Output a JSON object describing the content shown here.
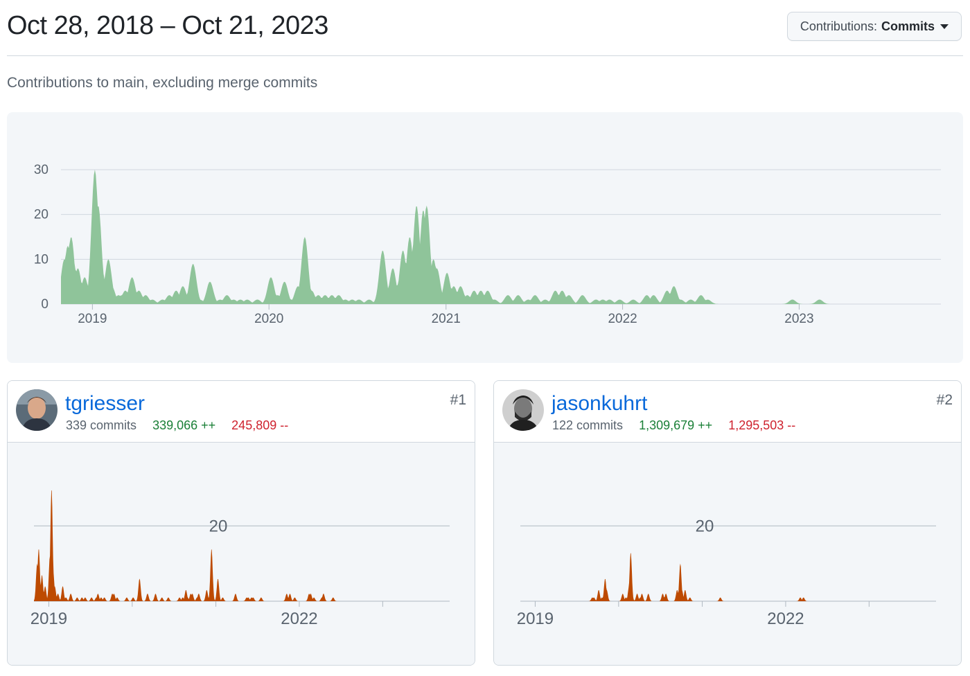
{
  "header": {
    "date_range": "Oct 28, 2018 – Oct 21, 2023",
    "dropdown_label": "Contributions:",
    "dropdown_value": "Commits"
  },
  "subtitle": "Contributions to main, excluding merge commits",
  "colors": {
    "main_area": "#8fc49a",
    "contributor_area": "#bd4a00",
    "grid": "#d0d7de",
    "link": "#0969da",
    "additions": "#1a7f37",
    "deletions": "#cf222e"
  },
  "chart_data": [
    {
      "type": "area",
      "title": "",
      "yticks": [
        0,
        10,
        20,
        30
      ],
      "xticks": [
        "2019",
        "2020",
        "2021",
        "2022",
        "2023"
      ],
      "ylim": [
        0,
        32
      ],
      "xlim": [
        "2018-10-28",
        "2023-10-21"
      ],
      "series": [
        {
          "x": [
            "2018-10-28",
            "2018-11-04",
            "2018-11-11",
            "2018-11-18",
            "2018-11-25",
            "2018-12-02",
            "2018-12-09",
            "2018-12-16",
            "2019-01-06",
            "2019-01-13",
            "2019-01-20",
            "2019-01-27",
            "2019-02-03",
            "2019-02-10",
            "2019-02-24",
            "2019-03-03",
            "2019-03-10",
            "2019-03-17",
            "2019-03-24",
            "2019-04-07",
            "2019-04-21",
            "2019-05-05",
            "2019-05-26",
            "2019-06-09",
            "2019-06-23",
            "2019-07-07",
            "2019-07-28",
            "2019-08-11",
            "2019-09-01",
            "2019-09-22",
            "2019-10-06",
            "2019-10-20",
            "2019-11-03",
            "2019-11-17",
            "2019-12-08",
            "2020-01-05",
            "2020-01-19",
            "2020-02-02",
            "2020-02-16",
            "2020-03-01",
            "2020-03-15",
            "2020-03-29",
            "2020-04-12",
            "2020-04-26",
            "2020-05-10",
            "2020-05-24",
            "2020-06-07",
            "2020-06-21",
            "2020-07-05",
            "2020-07-26",
            "2020-08-23",
            "2020-09-13",
            "2020-09-27",
            "2020-10-04",
            "2020-10-18",
            "2020-10-25",
            "2020-11-01",
            "2020-11-15",
            "2020-11-22",
            "2020-11-29",
            "2020-12-06",
            "2020-12-13",
            "2021-01-03",
            "2021-01-17",
            "2021-01-31",
            "2021-02-14",
            "2021-02-28",
            "2021-03-14",
            "2021-03-28",
            "2021-04-11",
            "2021-05-09",
            "2021-05-30",
            "2021-06-20",
            "2021-07-04",
            "2021-07-25",
            "2021-08-15",
            "2021-08-29",
            "2021-09-12",
            "2021-10-10",
            "2021-11-07",
            "2021-11-21",
            "2021-12-05",
            "2021-12-26",
            "2022-01-23",
            "2022-02-20",
            "2022-03-06",
            "2022-04-03",
            "2022-04-17",
            "2022-05-01",
            "2022-05-22",
            "2022-06-12",
            "2022-06-26",
            "2022-12-18",
            "2023-02-12"
          ],
          "values": [
            3,
            10,
            13,
            15,
            8,
            8,
            1,
            6,
            30,
            22,
            8,
            4,
            10,
            4,
            2,
            2,
            3,
            1,
            6,
            3,
            2,
            1,
            1,
            2,
            3,
            4,
            9,
            1,
            5,
            1,
            2,
            1,
            1,
            1,
            1,
            6,
            2,
            5,
            1,
            4,
            15,
            3,
            2,
            2,
            2,
            2,
            1,
            1,
            1,
            1,
            12,
            8,
            5,
            12,
            15,
            5,
            22,
            21,
            22,
            6,
            10,
            8,
            7,
            4,
            4,
            2,
            3,
            3,
            3,
            1,
            2,
            2,
            1,
            2,
            1,
            3,
            3,
            2,
            2,
            1,
            1,
            1,
            1,
            1,
            2,
            2,
            3,
            4,
            1,
            1,
            2,
            1,
            1,
            1
          ]
        }
      ]
    },
    {
      "type": "area",
      "title": "",
      "yticks": [
        20
      ],
      "xticks": [
        "2019",
        "2022"
      ],
      "xlim": [
        "2018-10-28",
        "2023-10-21"
      ],
      "ylim": [
        0,
        32
      ],
      "series": [
        {
          "x": [
            "2018-11-11",
            "2018-11-18",
            "2018-12-02",
            "2018-12-09",
            "2018-12-16",
            "2019-01-06",
            "2019-01-13",
            "2019-01-20",
            "2019-01-27",
            "2019-02-10",
            "2019-03-03",
            "2019-03-17",
            "2019-04-07",
            "2019-05-05",
            "2019-05-26",
            "2019-06-09",
            "2019-07-07",
            "2019-07-28",
            "2019-08-04",
            "2019-08-18",
            "2019-09-01",
            "2019-10-06",
            "2019-10-13",
            "2019-10-27",
            "2019-12-08",
            "2020-01-05",
            "2020-02-02",
            "2020-03-08",
            "2020-04-12",
            "2020-05-10",
            "2020-06-07",
            "2020-07-26",
            "2020-08-09",
            "2020-08-23",
            "2020-08-30",
            "2020-09-13",
            "2020-09-20",
            "2020-10-11",
            "2020-10-18",
            "2020-11-22",
            "2020-12-13",
            "2021-01-10",
            "2021-01-31",
            "2021-03-28",
            "2021-05-16",
            "2021-05-23",
            "2021-06-06",
            "2021-06-13",
            "2021-07-18",
            "2021-11-07",
            "2021-11-21",
            "2021-12-12",
            "2022-02-13",
            "2022-02-20",
            "2022-03-06",
            "2022-04-10",
            "2022-04-17",
            "2022-05-29"
          ],
          "values": [
            10,
            14,
            7,
            2,
            4,
            12,
            30,
            8,
            4,
            2,
            4,
            1,
            2,
            1,
            1,
            1,
            1,
            1,
            2,
            1,
            1,
            2,
            2,
            1,
            1,
            1,
            6,
            2,
            2,
            1,
            1,
            1,
            1,
            3,
            1,
            2,
            2,
            1,
            2,
            3,
            14,
            6,
            1,
            2,
            1,
            1,
            1,
            1,
            1,
            2,
            2,
            1,
            2,
            2,
            1,
            1,
            2,
            1
          ]
        }
      ]
    },
    {
      "type": "area",
      "title": "",
      "yticks": [
        20
      ],
      "xticks": [
        "2019",
        "2022"
      ],
      "xlim": [
        "2018-10-28",
        "2023-10-21"
      ],
      "ylim": [
        0,
        32
      ],
      "series": [
        {
          "x": [
            "2019-09-08",
            "2019-09-15",
            "2019-10-06",
            "2019-10-20",
            "2019-11-03",
            "2019-11-10",
            "2020-01-19",
            "2020-02-02",
            "2020-02-16",
            "2020-02-23",
            "2020-03-01",
            "2020-03-22",
            "2020-04-05",
            "2020-04-12",
            "2020-05-10",
            "2020-07-12",
            "2020-07-19",
            "2020-07-26",
            "2020-09-13",
            "2020-09-27",
            "2020-10-04",
            "2020-10-18",
            "2020-11-08",
            "2021-03-21",
            "2022-03-06",
            "2022-03-20"
          ],
          "values": [
            1,
            1,
            3,
            1,
            6,
            3,
            2,
            1,
            4,
            13,
            1,
            2,
            1,
            2,
            2,
            2,
            1,
            2,
            3,
            10,
            3,
            3,
            1,
            1,
            1,
            1
          ]
        }
      ]
    }
  ],
  "contributors": [
    {
      "username": "tgriesser",
      "commits": "339 commits",
      "additions": "339,066 ++",
      "deletions": "245,809 --",
      "rank": "#1"
    },
    {
      "username": "jasonkuhrt",
      "commits": "122 commits",
      "additions": "1,309,679 ++",
      "deletions": "1,295,503 --",
      "rank": "#2"
    }
  ]
}
